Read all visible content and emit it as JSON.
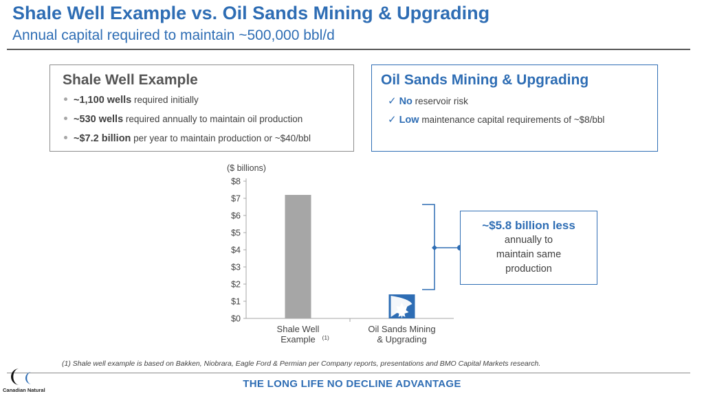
{
  "header": {
    "title": "Shale Well Example vs. Oil Sands Mining & Upgrading",
    "subtitle": "Annual capital required to maintain ~500,000 bbl/d"
  },
  "shale_box": {
    "title": "Shale Well Example",
    "bullets": [
      {
        "bold": "~1,100 wells",
        "text": " required initially"
      },
      {
        "bold": "~530 wells",
        "text": " required annually to maintain oil production"
      },
      {
        "bold": "~$7.2 billion",
        "text": " per year to maintain production or ~$40/bbl"
      }
    ]
  },
  "oil_box": {
    "title": "Oil Sands Mining & Upgrading",
    "items": [
      {
        "bold": "No",
        "text": " reservoir risk"
      },
      {
        "bold": "Low",
        "text": " maintenance capital requirements of ~$8/bbl"
      }
    ]
  },
  "chart_data": {
    "type": "bar",
    "unit_label": "($ billions)",
    "categories": [
      "Shale Well Example",
      "Oil Sands Mining & Upgrading"
    ],
    "category_lines": [
      [
        "Shale Well",
        "Example"
      ],
      [
        "Oil Sands Mining",
        "& Upgrading"
      ]
    ],
    "category_footnote": [
      "(1)",
      ""
    ],
    "values": [
      7.2,
      1.4
    ],
    "ylim": [
      0,
      8
    ],
    "yticks": [
      "$0",
      "$1",
      "$2",
      "$3",
      "$4",
      "$5",
      "$6",
      "$7",
      "$8"
    ],
    "bar_colors": [
      "#a6a6a6",
      "#2e6db4"
    ],
    "title": ""
  },
  "callout": {
    "headline": "~$5.8 billion less",
    "body_lines": [
      "annually to",
      "maintain same",
      "production"
    ]
  },
  "footnote": "(1) Shale well example is based on Bakken, Niobrara, Eagle Ford & Permian per Company reports, presentations and BMO Capital Markets research.",
  "footer": {
    "tagline": "THE LONG LIFE NO DECLINE ADVANTAGE",
    "logo_text": "Canadian Natural"
  },
  "colors": {
    "accent": "#2e6db4",
    "gray_bar": "#a6a6a6",
    "text": "#404040"
  }
}
